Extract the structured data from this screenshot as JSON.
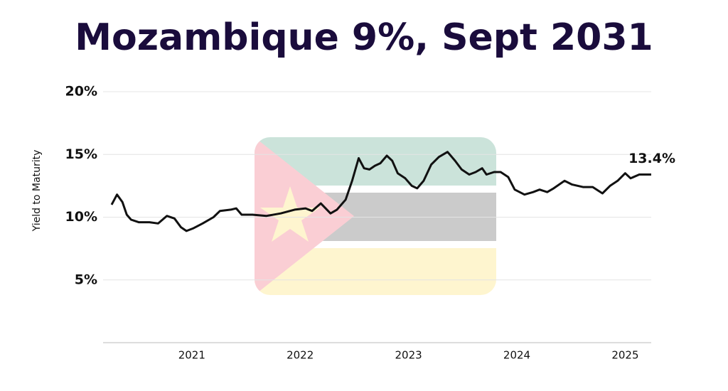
{
  "chart_data": {
    "type": "line",
    "title": "Mozambique 9%, Sept 2031",
    "ylabel": "Yield to Maturity",
    "annotations": [
      "13.4%"
    ],
    "color": "#111111",
    "grid": true,
    "x": [
      2020.26,
      2020.31,
      2020.36,
      2020.4,
      2020.44,
      2020.51,
      2020.61,
      2020.69,
      2020.77,
      2020.84,
      2020.9,
      2020.95,
      2021.01,
      2021.1,
      2021.2,
      2021.26,
      2021.36,
      2021.41,
      2021.46,
      2021.56,
      2021.69,
      2021.82,
      2021.95,
      2022.05,
      2022.11,
      2022.19,
      2022.28,
      2022.34,
      2022.42,
      2022.48,
      2022.54,
      2022.59,
      2022.64,
      2022.69,
      2022.74,
      2022.8,
      2022.85,
      2022.9,
      2022.97,
      2023.03,
      2023.08,
      2023.14,
      2023.21,
      2023.28,
      2023.36,
      2023.43,
      2023.49,
      2023.56,
      2023.62,
      2023.68,
      2023.72,
      2023.79,
      2023.85,
      2023.92,
      2023.98,
      2024.07,
      2024.15,
      2024.21,
      2024.28,
      2024.34,
      2024.44,
      2024.51,
      2024.61,
      2024.7,
      2024.79,
      2024.86,
      2024.93,
      2025.0,
      2025.05,
      2025.13,
      2025.24
    ],
    "values": [
      11.0,
      11.8,
      11.2,
      10.2,
      9.8,
      9.6,
      9.6,
      9.5,
      10.1,
      9.9,
      9.2,
      8.9,
      9.1,
      9.5,
      10.0,
      10.5,
      10.6,
      10.7,
      10.2,
      10.2,
      10.1,
      10.3,
      10.6,
      10.7,
      10.5,
      11.1,
      10.3,
      10.6,
      11.4,
      12.9,
      14.7,
      13.9,
      13.8,
      14.1,
      14.3,
      14.9,
      14.5,
      13.5,
      13.1,
      12.5,
      12.3,
      12.9,
      14.2,
      14.8,
      15.2,
      14.5,
      13.8,
      13.4,
      13.6,
      13.9,
      13.4,
      13.6,
      13.6,
      13.2,
      12.2,
      11.8,
      12.0,
      12.2,
      12.0,
      12.3,
      12.9,
      12.6,
      12.4,
      12.4,
      11.9,
      12.5,
      12.9,
      13.5,
      13.1,
      13.4,
      13.4
    ],
    "xlim": [
      2020.26,
      2025.24
    ],
    "xticks": [
      2021,
      2022,
      2023,
      2024,
      2025
    ],
    "ylim": [
      0,
      20
    ],
    "yticks": [
      {
        "value": 5,
        "label": "5%"
      },
      {
        "value": 10,
        "label": "10%"
      },
      {
        "value": 15,
        "label": "15%"
      },
      {
        "value": 20,
        "label": "20%"
      }
    ]
  }
}
